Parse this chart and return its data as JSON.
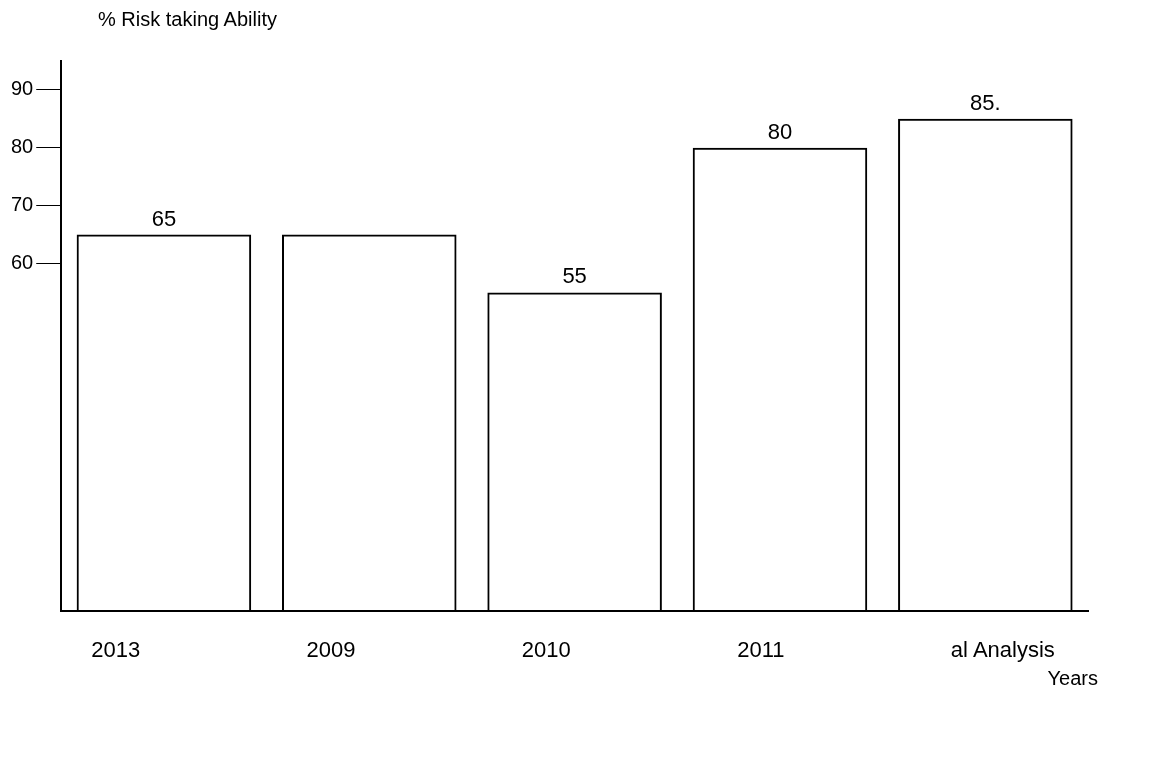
{
  "chart_data": {
    "type": "bar",
    "ylabel": "% Risk taking Ability",
    "xlabel": "Years",
    "categories": [
      null,
      null,
      null,
      null,
      null
    ],
    "values": [
      65,
      65,
      55,
      80,
      85
    ],
    "value_labels": [
      "65",
      null,
      "55",
      "80",
      "85."
    ],
    "color": "#000000",
    "ylim": [
      0,
      95
    ],
    "yticks": [
      60,
      70,
      80,
      90
    ],
    "grid": false,
    "legend": false,
    "annotations": [
      "2013",
      "2009",
      "2010",
      "2011",
      "al Analysis"
    ]
  }
}
